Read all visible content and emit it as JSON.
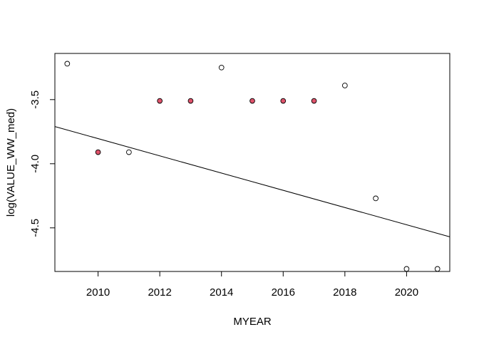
{
  "chart_data": {
    "type": "scatter",
    "title": "",
    "xlabel": "MYEAR",
    "ylabel": "log(VALUE_WW_med)",
    "xlim": [
      2008.6,
      2021.4
    ],
    "ylim": [
      -4.84,
      -3.14
    ],
    "x_ticks": [
      2010,
      2012,
      2014,
      2016,
      2018,
      2020
    ],
    "x_tick_labels": [
      "2010",
      "2012",
      "2014",
      "2016",
      "2018",
      "2020"
    ],
    "y_ticks": [
      -3.5,
      -4.0,
      -4.5
    ],
    "y_tick_labels": [
      "-3.5",
      "-4.0",
      "-4.5"
    ],
    "grid": false,
    "points": [
      {
        "x": 2009,
        "y": -3.22,
        "filled": false
      },
      {
        "x": 2010,
        "y": -3.91,
        "filled": true
      },
      {
        "x": 2011,
        "y": -3.91,
        "filled": false
      },
      {
        "x": 2012,
        "y": -3.51,
        "filled": true
      },
      {
        "x": 2013,
        "y": -3.51,
        "filled": true
      },
      {
        "x": 2014,
        "y": -3.25,
        "filled": false
      },
      {
        "x": 2015,
        "y": -3.51,
        "filled": true
      },
      {
        "x": 2016,
        "y": -3.51,
        "filled": true
      },
      {
        "x": 2017,
        "y": -3.51,
        "filled": true
      },
      {
        "x": 2018,
        "y": -3.39,
        "filled": false
      },
      {
        "x": 2019,
        "y": -4.27,
        "filled": false
      },
      {
        "x": 2020,
        "y": -4.82,
        "filled": false
      },
      {
        "x": 2021,
        "y": -4.82,
        "filled": false
      }
    ],
    "trend_line": {
      "x": [
        2008.6,
        2021.4
      ],
      "y": [
        -3.71,
        -4.57
      ]
    },
    "colors": {
      "filled_point": "#DF536B",
      "point_stroke": "#000000",
      "hollow_point": "#ffffff",
      "line": "#000000",
      "axis": "#000000"
    }
  }
}
